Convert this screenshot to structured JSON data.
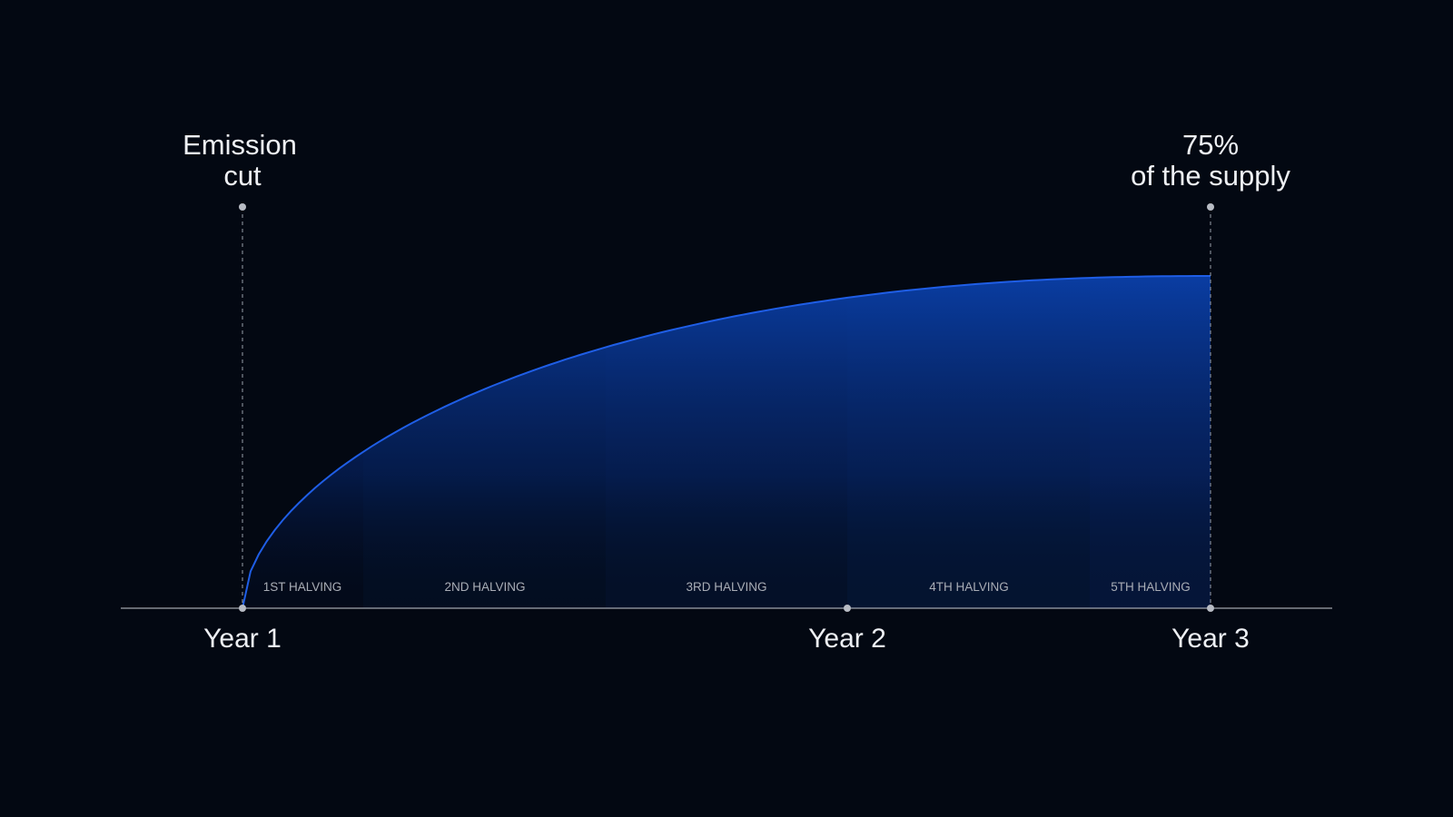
{
  "chart_data": {
    "type": "area",
    "x_ticks": [
      "Year 1",
      "Year 2",
      "Year 3"
    ],
    "annotations": {
      "start": [
        "Emission",
        "cut"
      ],
      "end": [
        "75%",
        "of the supply"
      ]
    },
    "halvings": [
      "1ST HALVING",
      "2ND HALVING",
      "3RD HALVING",
      "4TH HALVING",
      "5TH HALVING"
    ],
    "curve": {
      "x_start_year": 1,
      "x_end_year": 3,
      "end_supply_pct": 75,
      "shape": "concave-saturating"
    }
  },
  "colors": {
    "background": "#030812",
    "curve": "#1f5ee6",
    "fill_top": "#0a3fa8",
    "axis": "#c9ccd3",
    "text": "#eef0f4",
    "muted_text": "#a9adb6"
  }
}
